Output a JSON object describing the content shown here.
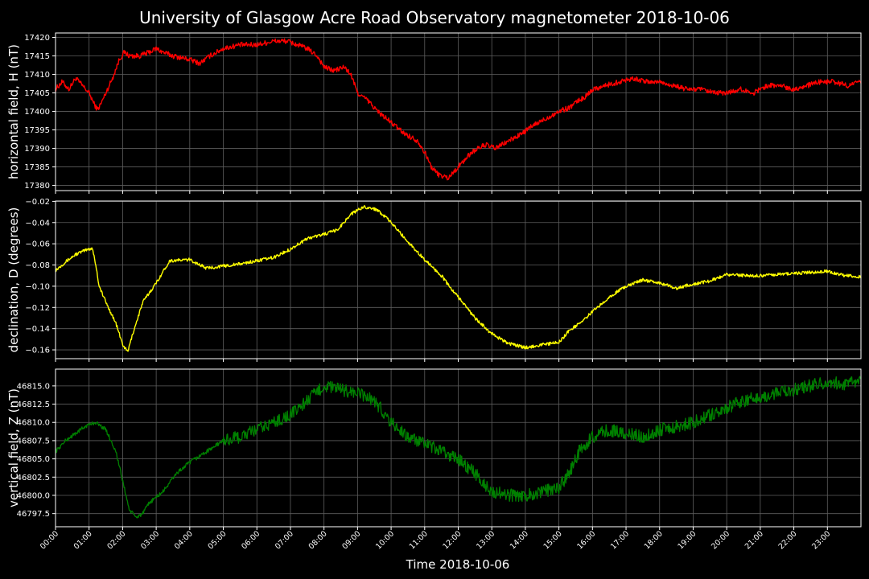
{
  "title": "University of Glasgow Acre Road Observatory magnetometer 2018-10-06",
  "xlabel": "Time 2018-10-06",
  "x_tick_labels": [
    "00:00",
    "01:00",
    "02:00",
    "03:00",
    "04:00",
    "05:00",
    "06:00",
    "07:00",
    "08:00",
    "09:00",
    "10:00",
    "11:00",
    "12:00",
    "13:00",
    "14:00",
    "15:00",
    "16:00",
    "17:00",
    "18:00",
    "19:00",
    "20:00",
    "21:00",
    "22:00",
    "23:00"
  ],
  "chart_data": [
    {
      "type": "line",
      "ylabel": "horizontal field, H (nT)",
      "color": "#ff0000",
      "grid": true,
      "xlim": [
        0,
        24
      ],
      "ylim": [
        17378.6,
        17421.2
      ],
      "yticks": [
        17380,
        17385,
        17390,
        17395,
        17400,
        17405,
        17410,
        17415,
        17420
      ],
      "ytick_labels": [
        "17380",
        "17385",
        "17390",
        "17395",
        "17400",
        "17405",
        "17410",
        "17415",
        "17420"
      ],
      "noise": 0.7,
      "x": [
        0,
        0.2,
        0.4,
        0.6,
        0.8,
        1.0,
        1.15,
        1.25,
        1.35,
        1.5,
        1.7,
        1.9,
        2.05,
        2.2,
        2.5,
        2.8,
        3.0,
        3.2,
        3.5,
        4.0,
        4.3,
        4.6,
        5.0,
        5.5,
        6.0,
        6.5,
        6.9,
        7.2,
        7.5,
        7.8,
        8.0,
        8.3,
        8.6,
        8.8,
        9.0,
        9.3,
        9.6,
        10.0,
        10.4,
        10.8,
        11.0,
        11.2,
        11.4,
        11.7,
        11.9,
        12.1,
        12.4,
        12.8,
        13.1,
        13.5,
        13.9,
        14.2,
        14.6,
        15.0,
        15.3,
        15.6,
        15.8,
        16.0,
        16.4,
        16.8,
        17.2,
        17.6,
        18.0,
        18.4,
        18.8,
        19.2,
        19.6,
        20.0,
        20.4,
        20.8,
        21.2,
        21.6,
        22.0,
        22.4,
        22.8,
        23.2,
        23.6,
        24.0
      ],
      "values": [
        17406,
        17408,
        17406,
        17409,
        17407,
        17405,
        17402,
        17400.5,
        17402,
        17405,
        17409,
        17414,
        17416,
        17415,
        17415,
        17416,
        17417,
        17416,
        17415,
        17414,
        17413,
        17415,
        17417,
        17418,
        17418,
        17419,
        17419,
        17418,
        17417,
        17415,
        17412,
        17411,
        17412,
        17410,
        17405,
        17403,
        17400,
        17397,
        17394,
        17392,
        17389,
        17385,
        17383,
        17382,
        17384,
        17386,
        17389,
        17391,
        17390,
        17392,
        17394,
        17396,
        17398,
        17400,
        17401,
        17403,
        17404,
        17406,
        17407,
        17408,
        17409,
        17408,
        17408,
        17407,
        17406,
        17406,
        17405,
        17405,
        17406,
        17405,
        17407,
        17407,
        17406,
        17407,
        17408,
        17408,
        17407,
        17408
      ]
    },
    {
      "type": "line",
      "ylabel": "declination, D (degrees)",
      "color": "#ffff00",
      "grid": true,
      "xlim": [
        0,
        24
      ],
      "ylim": [
        -0.1683,
        -0.0197
      ],
      "yticks": [
        -0.16,
        -0.14,
        -0.12,
        -0.1,
        -0.08,
        -0.06,
        -0.04,
        -0.02
      ],
      "ytick_labels": [
        "−0.16",
        "−0.14",
        "−0.12",
        "−0.10",
        "−0.08",
        "−0.06",
        "−0.04",
        "−0.02"
      ],
      "noise": 0.0015,
      "x": [
        0,
        0.3,
        0.6,
        0.9,
        1.1,
        1.2,
        1.3,
        1.5,
        1.8,
        2.0,
        2.15,
        2.3,
        2.6,
        3.0,
        3.4,
        4.0,
        4.5,
        5.0,
        5.5,
        6.0,
        6.5,
        7.0,
        7.5,
        8.0,
        8.4,
        8.8,
        9.2,
        9.6,
        10.0,
        10.5,
        11.0,
        11.5,
        11.8,
        12.0,
        12.5,
        13.0,
        13.5,
        14.0,
        14.5,
        15.0,
        15.3,
        15.7,
        16.0,
        16.5,
        17.0,
        17.5,
        18.0,
        18.5,
        19.0,
        19.5,
        20.0,
        20.5,
        21.0,
        21.5,
        22.0,
        22.5,
        23.0,
        23.5,
        24.0
      ],
      "values": [
        -0.085,
        -0.077,
        -0.07,
        -0.066,
        -0.064,
        -0.08,
        -0.1,
        -0.115,
        -0.135,
        -0.155,
        -0.162,
        -0.145,
        -0.115,
        -0.097,
        -0.076,
        -0.075,
        -0.083,
        -0.081,
        -0.079,
        -0.076,
        -0.073,
        -0.065,
        -0.055,
        -0.051,
        -0.047,
        -0.032,
        -0.025,
        -0.028,
        -0.04,
        -0.058,
        -0.075,
        -0.09,
        -0.103,
        -0.11,
        -0.13,
        -0.145,
        -0.154,
        -0.158,
        -0.155,
        -0.153,
        -0.142,
        -0.133,
        -0.124,
        -0.11,
        -0.1,
        -0.094,
        -0.097,
        -0.102,
        -0.098,
        -0.095,
        -0.089,
        -0.09,
        -0.09,
        -0.089,
        -0.088,
        -0.087,
        -0.086,
        -0.09,
        -0.091
      ]
    },
    {
      "type": "line",
      "ylabel": "vertical field, Z (nT)",
      "color": "#008000",
      "grid": true,
      "xlim": [
        0,
        24
      ],
      "ylim": [
        46795.7,
        46817.3
      ],
      "yticks": [
        46797.5,
        46800.0,
        46802.5,
        46805.0,
        46807.5,
        46810.0,
        46812.5,
        46815.0
      ],
      "ytick_labels": [
        "46797.5",
        "46800.0",
        "46802.5",
        "46805.0",
        "46807.5",
        "46810.0",
        "46812.5",
        "46815.0"
      ],
      "noise": 0.9,
      "x": [
        0,
        0.3,
        0.6,
        0.9,
        1.2,
        1.5,
        1.8,
        2.0,
        2.2,
        2.4,
        2.6,
        2.8,
        3.2,
        3.6,
        4.0,
        4.5,
        5.0,
        5.5,
        6.0,
        6.5,
        7.0,
        7.5,
        8.0,
        8.5,
        9.0,
        9.5,
        10.0,
        10.5,
        11.0,
        11.5,
        12.0,
        12.5,
        13.0,
        13.5,
        14.0,
        14.5,
        15.0,
        15.3,
        15.6,
        16.0,
        16.5,
        17.0,
        17.5,
        18.0,
        18.5,
        19.0,
        19.5,
        20.0,
        20.5,
        21.0,
        21.5,
        22.0,
        22.5,
        23.0,
        23.5,
        24.0
      ],
      "values": [
        46806,
        46807.5,
        46808.5,
        46809.5,
        46810,
        46809,
        46806,
        46802,
        46798,
        46797,
        46797.5,
        46799,
        46800.5,
        46803,
        46804.5,
        46806,
        46807.5,
        46808,
        46809,
        46810,
        46811,
        46813,
        46815,
        46814.5,
        46814,
        46813,
        46810,
        46808,
        46807,
        46806,
        46805,
        46803,
        46800.5,
        46800,
        46800,
        46800.5,
        46801,
        46803,
        46806,
        46808,
        46809,
        46808.5,
        46808,
        46809,
        46809.5,
        46810,
        46811,
        46812,
        46813,
        46813.5,
        46814,
        46814.5,
        46815,
        46815.5,
        46815.3,
        46815.5
      ]
    }
  ]
}
